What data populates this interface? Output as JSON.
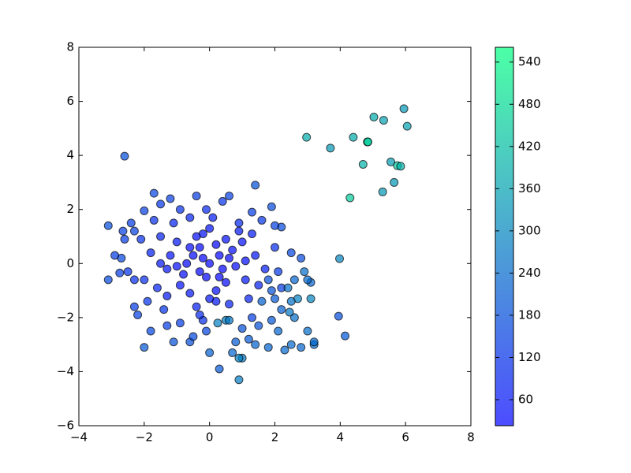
{
  "chart_data": {
    "type": "scatter",
    "x": [
      0,
      -0.5,
      0.4,
      -1,
      -0.8,
      0.7,
      1.1,
      -1.3,
      -0.2,
      0.2,
      -0.6,
      0.9,
      -1.5,
      1.4,
      -0.3,
      0.5,
      -1.8,
      1.7,
      -1.1,
      0.1,
      -0.4,
      1.2,
      -1.6,
      0.6,
      -2.0,
      2.0,
      -0.9,
      0.4,
      -2.3,
      1.6,
      -0.2,
      1.3,
      -1.4,
      2.2,
      -2.7,
      -0.7,
      0.3,
      -0.1,
      0.8,
      -1.2,
      -0.4,
      1.0,
      -0.9,
      0.5,
      -1.7,
      -1.2,
      -1.7,
      1.4,
      1.9,
      2.2,
      2.5,
      2.8,
      2.1,
      2.7,
      3.1,
      3.1,
      2.2,
      2.6,
      3.0,
      2.1,
      1.8,
      2.3,
      2.5,
      2.8,
      3.2,
      3.2,
      1.4,
      1.0,
      0.9,
      0.9,
      0.3,
      0.7,
      0.0,
      -0.6,
      -0.5,
      -0.1,
      0.25,
      0.5,
      0.6,
      0.8,
      1.2,
      1.5,
      1.0,
      1.9,
      1.6,
      1.9,
      1.8,
      2.0,
      2.4,
      2.5,
      2.6,
      -2.0,
      -1.8,
      -2.2,
      -2.3,
      -3.1,
      -3.1,
      -2.9,
      -2.75,
      -2.65,
      -2.4,
      -2.3,
      -2.0,
      -1.5,
      -0.4,
      0.6,
      2.0,
      1.3,
      0.9,
      -0.1,
      -0.6,
      -1.3,
      -0.9,
      -0.3,
      0.2,
      -1.9,
      -1.3,
      -2.5,
      -2.1,
      1.5,
      1.1,
      -0.2,
      0.6,
      -0.6,
      0.2,
      -0.3,
      0.3,
      -1.0,
      1.3,
      -1.5,
      0.0,
      0.0,
      -2.6,
      -1.1,
      3.0,
      2.9,
      2.45,
      2.97,
      3.7,
      4.4,
      4.83,
      4.85,
      5.03,
      5.33,
      5.95,
      6.05,
      4.7,
      5.55,
      5.75,
      5.85,
      5.65,
      5.3,
      4.3,
      3.98,
      3.95,
      4.15,
      -2.6
    ],
    "values": [
      0,
      0.3,
      -0.2,
      0.8,
      -0.4,
      0.5,
      -0.6,
      -0.2,
      1.1,
      -1,
      -1.1,
      1.2,
      1.0,
      0.3,
      0.6,
      0.9,
      0.4,
      -0.2,
      1.5,
      1.7,
      -1.6,
      -1.3,
      -0.9,
      -1.5,
      -0.6,
      0.6,
      2.0,
      2.3,
      1.2,
      1.6,
      -2.1,
      -2.0,
      -1.7,
      -0.9,
      0.2,
      0.0,
      0.3,
      -0.5,
      -0.1,
      0.3,
      1.0,
      0.8,
      -0.8,
      -0.7,
      1.6,
      2.4,
      2.6,
      2.9,
      2.1,
      1.35,
      0.4,
      0.2,
      -0.3,
      -1.3,
      -0.7,
      -1.3,
      -1.7,
      -2.0,
      -2.5,
      -2.5,
      -3.1,
      -3.2,
      -3.0,
      -3.1,
      -3.0,
      -2.9,
      -3.0,
      -3.5,
      -3.5,
      -4.3,
      -3.9,
      -3.3,
      -3.3,
      -2.9,
      -2.7,
      -2.5,
      -2.2,
      -2.1,
      -2.1,
      -2.9,
      -2.8,
      -2.3,
      -2.4,
      -2.1,
      -1.4,
      -1.0,
      -0.6,
      -1.3,
      -0.9,
      -1.4,
      -0.6,
      -3.1,
      -2.5,
      -1.9,
      -1.6,
      -0.6,
      1.4,
      0.3,
      -0.35,
      1.2,
      1.5,
      -0.6,
      1.95,
      2.2,
      2.5,
      2.5,
      1.4,
      1.9,
      1.5,
      2.0,
      1.7,
      -2.3,
      -2.2,
      -1.9,
      -1.4,
      -1.4,
      -1.2,
      -0.3,
      0.9,
      -0.8,
      0.1,
      0.2,
      0.2,
      0.6,
      0.7,
      -0.3,
      -0.5,
      -0.1,
      1.1,
      0.0,
      1.3,
      -1.3,
      0.9,
      -2.9,
      -0.6,
      -0.3,
      -1.8,
      4.67,
      4.27,
      4.67,
      4.5,
      4.5,
      5.42,
      5.3,
      5.73,
      5.08,
      3.67,
      3.76,
      3.62,
      3.6,
      3.0,
      2.65,
      2.43,
      0.18,
      -1.95,
      -2.68,
      3.97
    ],
    "color_values": [
      25,
      32,
      30,
      60,
      45,
      40,
      60,
      55,
      50,
      48,
      60,
      70,
      85,
      60,
      30,
      45,
      80,
      75,
      90,
      75,
      80,
      85,
      90,
      80,
      110,
      110,
      120,
      125,
      150,
      130,
      110,
      145,
      120,
      140,
      160,
      30,
      25,
      28,
      35,
      50,
      45,
      50,
      50,
      35,
      110,
      150,
      160,
      190,
      170,
      170,
      160,
      170,
      130,
      290,
      230,
      300,
      220,
      250,
      250,
      230,
      230,
      240,
      240,
      230,
      240,
      240,
      220,
      270,
      290,
      280,
      200,
      230,
      220,
      180,
      170,
      160,
      290,
      280,
      270,
      210,
      200,
      190,
      190,
      200,
      220,
      190,
      180,
      200,
      250,
      260,
      230,
      200,
      160,
      150,
      140,
      170,
      180,
      140,
      140,
      150,
      140,
      110,
      150,
      130,
      140,
      150,
      150,
      140,
      100,
      100,
      90,
      140,
      140,
      100,
      60,
      120,
      70,
      120,
      110,
      80,
      45,
      25,
      30,
      35,
      30,
      26,
      30,
      40,
      70,
      60,
      50,
      55,
      140,
      190,
      240,
      250,
      270,
      380,
      340,
      380,
      560,
      420,
      380,
      360,
      340,
      360,
      400,
      350,
      440,
      390,
      340,
      340,
      450,
      300,
      180,
      200,
      180
    ],
    "colormap": "winter",
    "alpha": 0.7,
    "xlim": [
      -4,
      8
    ],
    "ylim": [
      -6,
      8
    ],
    "xticks": [
      {
        "value": -4,
        "label": "−4"
      },
      {
        "value": -2,
        "label": "−2"
      },
      0,
      2,
      4,
      6,
      8
    ],
    "yticks": [
      {
        "value": -6,
        "label": "−6"
      },
      {
        "value": -4,
        "label": "−4"
      },
      {
        "value": -2,
        "label": "−2"
      },
      0,
      2,
      4,
      6,
      8
    ],
    "colorbar": {
      "lim": [
        23,
        561
      ],
      "ticks": [
        60,
        120,
        180,
        240,
        300,
        360,
        420,
        480,
        540
      ]
    }
  }
}
